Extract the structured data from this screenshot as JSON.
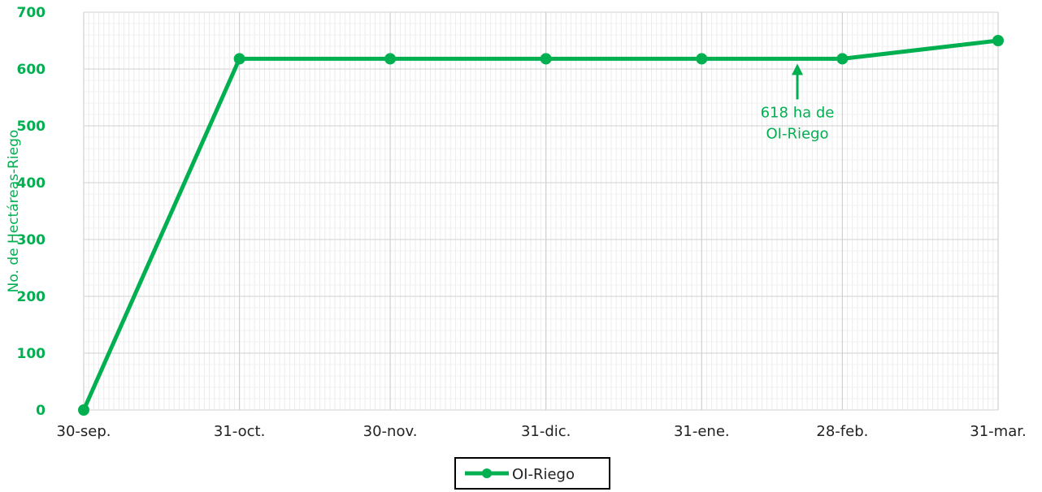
{
  "chart_data": {
    "type": "line",
    "x": [
      "30-sep.",
      "31-oct.",
      "30-nov.",
      "31-dic.",
      "31-ene.",
      "28-feb.",
      "31-mar."
    ],
    "x_dates": [
      "09-30",
      "10-31",
      "11-30",
      "12-31",
      "01-31",
      "02-28",
      "03-31"
    ],
    "series": [
      {
        "name": "OI-Riego",
        "points": [
          {
            "x": "30-sep.",
            "y": 0
          },
          {
            "x": "31-oct.",
            "y": 618
          },
          {
            "x": "30-nov.",
            "y": 618
          },
          {
            "x": "31-dic.",
            "y": 618
          },
          {
            "x": "31-ene.",
            "y": 618
          },
          {
            "x": "28-feb.",
            "y": 618
          },
          {
            "x": "31-mar.",
            "y": 650
          }
        ]
      }
    ],
    "annotation": {
      "lines": [
        "618 ha de",
        "OI-Riego"
      ],
      "target_y": 618
    },
    "title": "",
    "xlabel": "",
    "ylabel": "No. de Hectáreas-Riego",
    "ylim": [
      0,
      700
    ],
    "yticks": [
      0,
      100,
      200,
      300,
      400,
      500,
      600,
      700
    ],
    "grid": true,
    "minor_grid": "daily",
    "legend": "bottom-center",
    "colors": {
      "series": "#00b050",
      "axis_text": "#222222",
      "grid": "#d9d9d9"
    }
  }
}
